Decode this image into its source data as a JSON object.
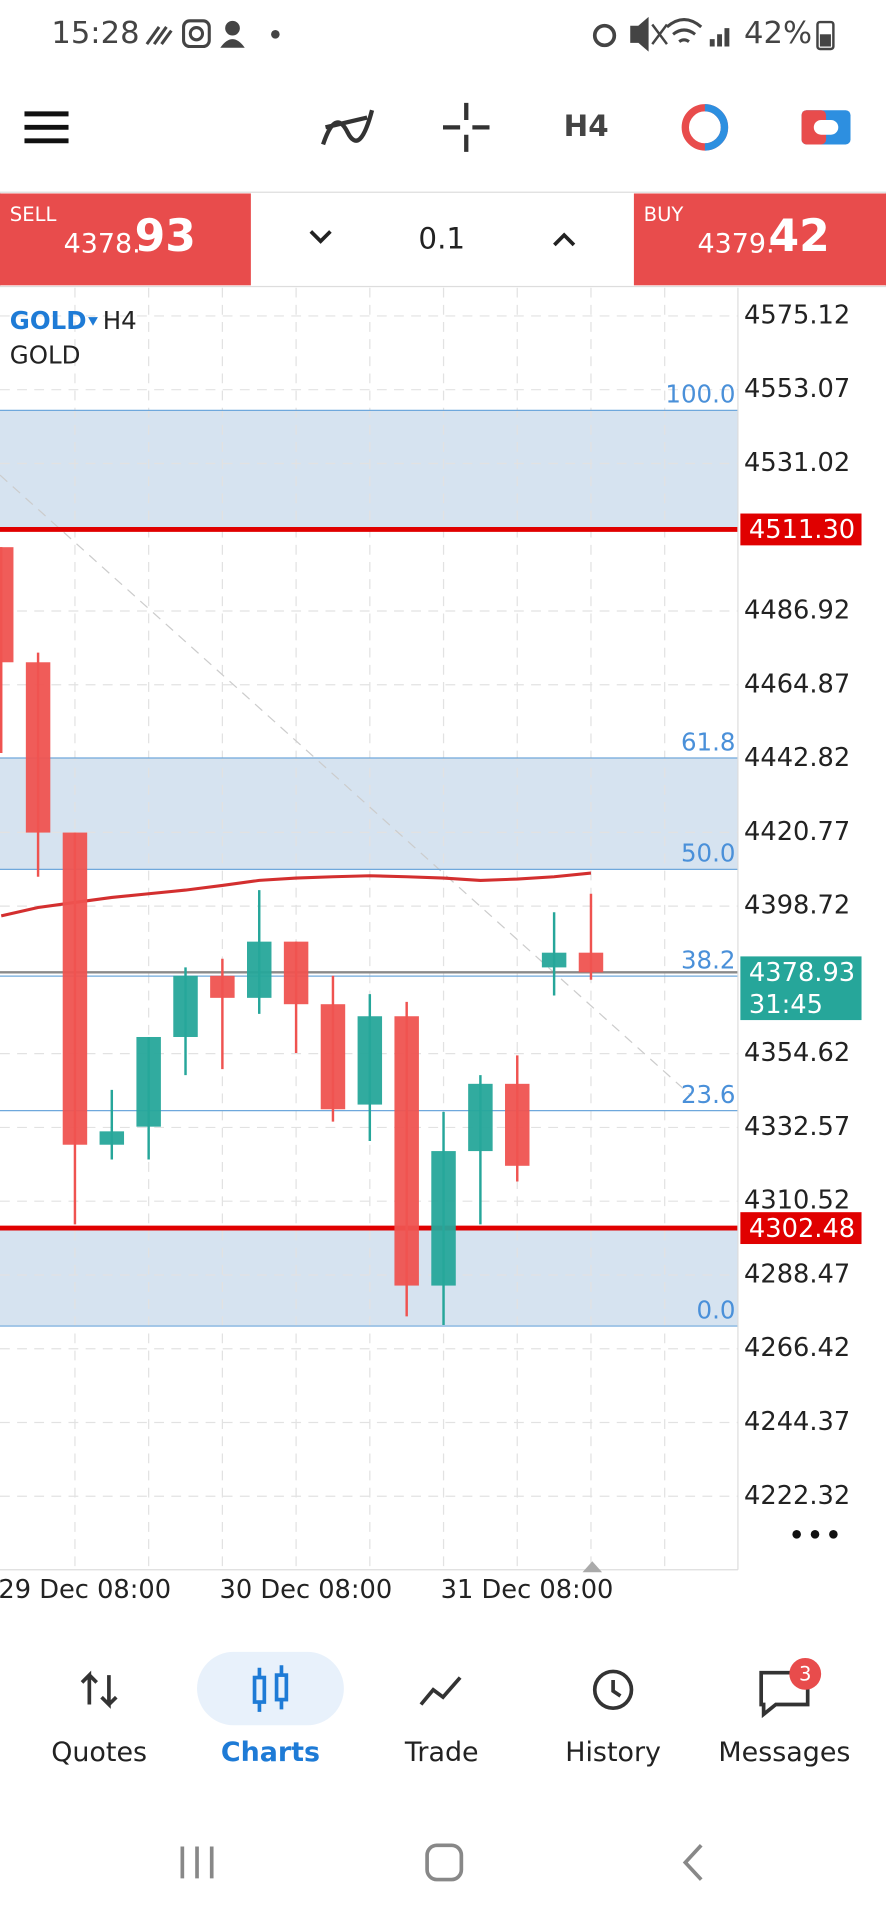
{
  "status_bar": {
    "time": "15:28",
    "battery": "42%"
  },
  "toolbar": {
    "timeframe": "H4"
  },
  "trade_panel": {
    "sell": {
      "label": "SELL",
      "price_main": "4378.",
      "price_big": "93"
    },
    "volume": "0.1",
    "buy": {
      "label": "BUY",
      "price_main": "4379.",
      "price_big": "42"
    }
  },
  "chart": {
    "symbol": "GOLD",
    "timeframe": "H4",
    "description": "GOLD",
    "ylim": [
      4200.35,
      4583.54
    ],
    "yticks": [
      4575.12,
      4553.07,
      4531.02,
      4486.92,
      4464.87,
      4442.82,
      4420.77,
      4398.72,
      4354.62,
      4332.57,
      4310.52,
      4288.47,
      4266.42,
      4244.37,
      4222.32
    ],
    "up_color": "#26a69a",
    "down_color": "#ef5350",
    "candles": [
      {
        "open": 4506.0,
        "high": 4506.0,
        "low": 4444.5,
        "close": 4471.6
      },
      {
        "open": 4471.6,
        "high": 4474.5,
        "low": 4407.5,
        "close": 4420.7
      },
      {
        "open": 4420.7,
        "high": 4420.7,
        "low": 4303.6,
        "close": 4327.4
      },
      {
        "open": 4327.4,
        "high": 4343.8,
        "low": 4323.0,
        "close": 4331.4
      },
      {
        "open": 4332.8,
        "high": 4359.6,
        "low": 4323.0,
        "close": 4359.6
      },
      {
        "open": 4359.6,
        "high": 4380.4,
        "low": 4348.2,
        "close": 4377.9
      },
      {
        "open": 4377.9,
        "high": 4383.0,
        "low": 4350.0,
        "close": 4371.3
      },
      {
        "open": 4371.3,
        "high": 4403.5,
        "low": 4366.5,
        "close": 4388.1
      },
      {
        "open": 4388.1,
        "high": 4388.1,
        "low": 4354.8,
        "close": 4369.4
      },
      {
        "open": 4369.4,
        "high": 4377.9,
        "low": 4334.3,
        "close": 4338.0
      },
      {
        "open": 4339.4,
        "high": 4372.4,
        "low": 4328.5,
        "close": 4365.8
      },
      {
        "open": 4365.8,
        "high": 4370.1,
        "low": 4276.1,
        "close": 4285.3
      },
      {
        "open": 4285.3,
        "high": 4337.2,
        "low": 4273.5,
        "close": 4325.5
      },
      {
        "open": 4325.5,
        "high": 4348.2,
        "low": 4303.6,
        "close": 4345.6
      },
      {
        "open": 4345.6,
        "high": 4354.1,
        "low": 4316.4,
        "close": 4321.1
      },
      {
        "open": 4380.4,
        "high": 4396.9,
        "low": 4372.0,
        "close": 4384.8
      },
      {
        "open": 4384.8,
        "high": 4402.4,
        "low": 4376.7,
        "close": 4378.93
      }
    ],
    "ma": [
      4395.8,
      4398.3,
      4399.8,
      4401.3,
      4402.4,
      4403.5,
      4404.9,
      4406.4,
      4407.1,
      4407.5,
      4407.8,
      4407.5,
      4407.1,
      4406.4,
      4406.8,
      4407.5,
      4408.6
    ],
    "ma_color": "#d32f2f",
    "fib_levels": [
      {
        "label": "100.0",
        "value": 4546.9
      },
      {
        "label": "61.8",
        "value": 4443.0
      },
      {
        "label": "50.0",
        "value": 4409.7
      },
      {
        "label": "38.2",
        "value": 4377.8
      },
      {
        "label": "23.6",
        "value": 4337.6
      },
      {
        "label": "0.0",
        "value": 4273.2
      }
    ],
    "lines": [
      {
        "value": 4511.3,
        "label": "4511.30"
      },
      {
        "value": 4302.48,
        "label": "4302.48"
      }
    ],
    "current_price": 4378.93,
    "countdown": "31:45",
    "time_labels": [
      "29 Dec 08:00",
      "30 Dec 08:00",
      "31 Dec 08:00"
    ]
  },
  "nav": {
    "items": [
      "Quotes",
      "Charts",
      "Trade",
      "History",
      "Messages"
    ],
    "messages_badge": "3"
  }
}
